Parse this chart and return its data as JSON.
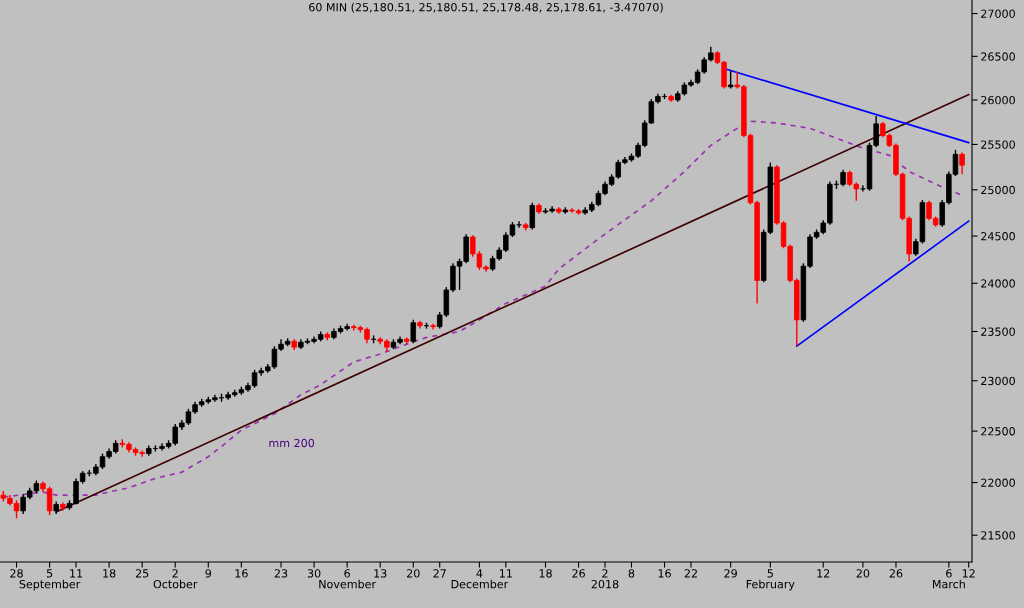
{
  "chart_data": {
    "type": "candlestick",
    "title": "60 MIN (25,180.51, 25,180.51, 25,178.48, 25,178.61, -3.47070)",
    "log": true,
    "ylim": [
      21250,
      27160
    ],
    "yticks": [
      21500,
      22000,
      22500,
      23000,
      23500,
      24000,
      24500,
      25000,
      25500,
      26000,
      26500,
      27000
    ],
    "categories": [
      null,
      null,
      "28",
      null,
      null,
      null,
      null,
      "5\nSeptember",
      null,
      null,
      null,
      "11",
      null,
      null,
      null,
      null,
      "18",
      null,
      null,
      null,
      null,
      "25",
      null,
      null,
      null,
      null,
      "2\nOctober",
      null,
      null,
      null,
      null,
      "9",
      null,
      null,
      null,
      null,
      "16",
      null,
      null,
      null,
      null,
      null,
      "23",
      null,
      null,
      null,
      null,
      "30",
      null,
      null,
      null,
      null,
      "6\nNovember",
      null,
      null,
      null,
      null,
      "13",
      null,
      null,
      null,
      null,
      "20",
      null,
      null,
      null,
      "27",
      null,
      null,
      null,
      null,
      null,
      "4\nDecember",
      null,
      null,
      null,
      "11",
      null,
      null,
      null,
      null,
      null,
      "18",
      null,
      null,
      null,
      null,
      "26",
      null,
      null,
      null,
      "2\n2018",
      null,
      null,
      null,
      "8",
      null,
      null,
      null,
      null,
      "16",
      null,
      null,
      null,
      "22",
      null,
      null,
      null,
      null,
      null,
      "29",
      null,
      null,
      null,
      null,
      null,
      "5\nFebruary",
      null,
      null,
      null,
      null,
      null,
      null,
      null,
      "12",
      null,
      null,
      null,
      null,
      null,
      "20",
      null,
      null,
      null,
      null,
      "26",
      null,
      null,
      null,
      null,
      null,
      null,
      null,
      "6\nMarch",
      null,
      null,
      "12"
    ],
    "grid": false,
    "annotations": [
      "mm 200"
    ],
    "series": [
      {
        "ohlc": [
          [
            21880,
            21920,
            21820,
            21850
          ],
          [
            21850,
            21880,
            21780,
            21800
          ],
          [
            21800,
            21830,
            21660,
            21730
          ],
          [
            21730,
            21890,
            21700,
            21860
          ],
          [
            21860,
            21950,
            21840,
            21920
          ],
          [
            21920,
            22020,
            21900,
            21990
          ],
          [
            21990,
            22010,
            21910,
            21940
          ],
          [
            21940,
            21960,
            21690,
            21730
          ],
          [
            21730,
            21820,
            21700,
            21790
          ],
          [
            21790,
            21810,
            21730,
            21760
          ],
          [
            21760,
            21830,
            21740,
            21800
          ],
          [
            21800,
            22040,
            21790,
            22010
          ],
          [
            22010,
            22110,
            21990,
            22090
          ],
          [
            22090,
            22120,
            22060,
            22090
          ],
          [
            22090,
            22180,
            22070,
            22150
          ],
          [
            22150,
            22280,
            22130,
            22250
          ],
          [
            22250,
            22330,
            22230,
            22300
          ],
          [
            22300,
            22410,
            22280,
            22380
          ],
          [
            22380,
            22420,
            22340,
            22370
          ],
          [
            22370,
            22390,
            22290,
            22320
          ],
          [
            22320,
            22340,
            22260,
            22290
          ],
          [
            22290,
            22310,
            22250,
            22280
          ],
          [
            22280,
            22360,
            22260,
            22330
          ],
          [
            22330,
            22360,
            22300,
            22330
          ],
          [
            22330,
            22380,
            22310,
            22350
          ],
          [
            22350,
            22410,
            22330,
            22380
          ],
          [
            22380,
            22570,
            22360,
            22540
          ],
          [
            22540,
            22610,
            22510,
            22580
          ],
          [
            22580,
            22720,
            22560,
            22690
          ],
          [
            22690,
            22790,
            22670,
            22760
          ],
          [
            22760,
            22820,
            22740,
            22790
          ],
          [
            22790,
            22840,
            22770,
            22810
          ],
          [
            22810,
            22860,
            22790,
            22830
          ],
          [
            22830,
            22870,
            22790,
            22830
          ],
          [
            22830,
            22890,
            22810,
            22860
          ],
          [
            22860,
            22910,
            22840,
            22880
          ],
          [
            22880,
            22940,
            22860,
            22910
          ],
          [
            22910,
            22980,
            22890,
            22950
          ],
          [
            22950,
            23110,
            22930,
            23080
          ],
          [
            23080,
            23130,
            23050,
            23100
          ],
          [
            23100,
            23170,
            23080,
            23140
          ],
          [
            23140,
            23350,
            23120,
            23320
          ],
          [
            23320,
            23420,
            23300,
            23370
          ],
          [
            23370,
            23430,
            23350,
            23400
          ],
          [
            23400,
            23420,
            23310,
            23340
          ],
          [
            23340,
            23420,
            23320,
            23390
          ],
          [
            23390,
            23430,
            23370,
            23400
          ],
          [
            23400,
            23450,
            23380,
            23420
          ],
          [
            23420,
            23500,
            23400,
            23470
          ],
          [
            23470,
            23490,
            23410,
            23440
          ],
          [
            23440,
            23530,
            23420,
            23500
          ],
          [
            23500,
            23560,
            23480,
            23530
          ],
          [
            23530,
            23580,
            23510,
            23550
          ],
          [
            23550,
            23570,
            23510,
            23540
          ],
          [
            23540,
            23560,
            23490,
            23520
          ],
          [
            23520,
            23540,
            23380,
            23420
          ],
          [
            23420,
            23460,
            23380,
            23420
          ],
          [
            23420,
            23440,
            23370,
            23400
          ],
          [
            23400,
            23420,
            23290,
            23340
          ],
          [
            23340,
            23420,
            23320,
            23390
          ],
          [
            23390,
            23450,
            23370,
            23420
          ],
          [
            23420,
            23440,
            23370,
            23400
          ],
          [
            23400,
            23620,
            23380,
            23590
          ],
          [
            23590,
            23610,
            23530,
            23560
          ],
          [
            23560,
            23590,
            23530,
            23560
          ],
          [
            23560,
            23580,
            23520,
            23550
          ],
          [
            23550,
            23700,
            23530,
            23670
          ],
          [
            23670,
            23960,
            23650,
            23930
          ],
          [
            23930,
            24210,
            23910,
            24180
          ],
          [
            24180,
            24260,
            23930,
            24230
          ],
          [
            24230,
            24520,
            24210,
            24490
          ],
          [
            24490,
            24510,
            24280,
            24310
          ],
          [
            24310,
            24340,
            24140,
            24170
          ],
          [
            24170,
            24190,
            24120,
            24150
          ],
          [
            24150,
            24290,
            24130,
            24260
          ],
          [
            24260,
            24380,
            24240,
            24350
          ],
          [
            24350,
            24540,
            24330,
            24510
          ],
          [
            24510,
            24650,
            24490,
            24620
          ],
          [
            24620,
            24660,
            24590,
            24620
          ],
          [
            24620,
            24640,
            24560,
            24590
          ],
          [
            24590,
            24860,
            24570,
            24830
          ],
          [
            24830,
            24850,
            24740,
            24760
          ],
          [
            24760,
            24800,
            24740,
            24770
          ],
          [
            24770,
            24820,
            24750,
            24790
          ],
          [
            24790,
            24810,
            24740,
            24760
          ],
          [
            24760,
            24810,
            24740,
            24780
          ],
          [
            24780,
            24800,
            24750,
            24770
          ],
          [
            24770,
            24790,
            24730,
            24750
          ],
          [
            24750,
            24810,
            24730,
            24780
          ],
          [
            24780,
            24870,
            24760,
            24840
          ],
          [
            24840,
            24990,
            24820,
            24960
          ],
          [
            24960,
            25090,
            24940,
            25060
          ],
          [
            25060,
            25170,
            25040,
            25140
          ],
          [
            25140,
            25330,
            25120,
            25300
          ],
          [
            25300,
            25360,
            25280,
            25330
          ],
          [
            25330,
            25400,
            25310,
            25370
          ],
          [
            25370,
            25520,
            25350,
            25490
          ],
          [
            25490,
            25770,
            25470,
            25740
          ],
          [
            25740,
            26010,
            25730,
            25980
          ],
          [
            25980,
            26070,
            25960,
            26040
          ],
          [
            26040,
            26070,
            26010,
            26040
          ],
          [
            26040,
            26060,
            25980,
            26000
          ],
          [
            26000,
            26100,
            25980,
            26070
          ],
          [
            26070,
            26200,
            26050,
            26170
          ],
          [
            26170,
            26230,
            26150,
            26200
          ],
          [
            26200,
            26350,
            26180,
            26320
          ],
          [
            26320,
            26490,
            26300,
            26460
          ],
          [
            26460,
            26610,
            26440,
            26540
          ],
          [
            26540,
            26560,
            26410,
            26430
          ],
          [
            26430,
            26450,
            26130,
            26150
          ],
          [
            26150,
            26330,
            26130,
            26170
          ],
          [
            26170,
            26320,
            26130,
            26150
          ],
          [
            26150,
            26170,
            25580,
            25600
          ],
          [
            25600,
            25620,
            24840,
            24860
          ],
          [
            24860,
            24880,
            23790,
            24030
          ],
          [
            24030,
            24570,
            24010,
            24540
          ],
          [
            24540,
            25300,
            24520,
            25250
          ],
          [
            25250,
            25270,
            24620,
            24640
          ],
          [
            24640,
            24660,
            24370,
            24390
          ],
          [
            24390,
            24410,
            24010,
            24030
          ],
          [
            24030,
            24050,
            23350,
            23620
          ],
          [
            23620,
            24210,
            23600,
            24180
          ],
          [
            24180,
            24520,
            24160,
            24490
          ],
          [
            24490,
            24570,
            24470,
            24540
          ],
          [
            24540,
            24670,
            24520,
            24640
          ],
          [
            24640,
            25090,
            24620,
            25060
          ],
          [
            25060,
            25100,
            25010,
            25060
          ],
          [
            25060,
            25220,
            25040,
            25190
          ],
          [
            25190,
            25210,
            25040,
            25060
          ],
          [
            25060,
            25080,
            24880,
            25010
          ],
          [
            25010,
            25050,
            24980,
            25010
          ],
          [
            25010,
            25520,
            24990,
            25490
          ],
          [
            25490,
            25820,
            25470,
            25730
          ],
          [
            25730,
            25750,
            25580,
            25600
          ],
          [
            25600,
            25620,
            25470,
            25490
          ],
          [
            25490,
            25510,
            25150,
            25170
          ],
          [
            25170,
            25190,
            24670,
            24690
          ],
          [
            24690,
            24710,
            24230,
            24310
          ],
          [
            24310,
            24470,
            24290,
            24440
          ],
          [
            24440,
            24890,
            24420,
            24860
          ],
          [
            24860,
            24880,
            24670,
            24690
          ],
          [
            24690,
            24710,
            24600,
            24620
          ],
          [
            24620,
            24890,
            24600,
            24860
          ],
          [
            24860,
            25200,
            24840,
            25170
          ],
          [
            25170,
            25440,
            25150,
            25390
          ],
          [
            25390,
            25410,
            25170,
            25270
          ],
          null
        ],
        "colors": [
          "#ff0000",
          "#ff0000",
          "#ff0000",
          "#000000",
          "#000000",
          "#000000",
          "#ff0000",
          "#ff0000",
          "#000000",
          "#ff0000",
          "#000000",
          "#000000",
          "#000000",
          "#000000",
          "#000000",
          "#000000",
          "#000000",
          "#000000",
          "#ff0000",
          "#ff0000",
          "#ff0000",
          "#ff0000",
          "#000000",
          "#000000",
          "#000000",
          "#000000",
          "#000000",
          "#000000",
          "#000000",
          "#000000",
          "#000000",
          "#000000",
          "#000000",
          "#000000",
          "#000000",
          "#000000",
          "#000000",
          "#000000",
          "#000000",
          "#000000",
          "#000000",
          "#000000",
          "#000000",
          "#000000",
          "#ff0000",
          "#000000",
          "#000000",
          "#000000",
          "#000000",
          "#ff0000",
          "#000000",
          "#000000",
          "#000000",
          "#ff0000",
          "#ff0000",
          "#ff0000",
          "#000000",
          "#ff0000",
          "#ff0000",
          "#000000",
          "#000000",
          "#ff0000",
          "#000000",
          "#ff0000",
          "#000000",
          "#ff0000",
          "#000000",
          "#000000",
          "#000000",
          "#000000",
          "#000000",
          "#ff0000",
          "#ff0000",
          "#ff0000",
          "#000000",
          "#000000",
          "#000000",
          "#000000",
          "#000000",
          "#ff0000",
          "#000000",
          "#ff0000",
          "#000000",
          "#000000",
          "#ff0000",
          "#000000",
          "#ff0000",
          "#ff0000",
          "#000000",
          "#000000",
          "#000000",
          "#000000",
          "#000000",
          "#000000",
          "#000000",
          "#000000",
          "#000000",
          "#000000",
          "#000000",
          "#000000",
          "#000000",
          "#ff0000",
          "#000000",
          "#000000",
          "#000000",
          "#000000",
          "#000000",
          "#000000",
          "#ff0000",
          "#ff0000",
          "#000000",
          "#ff0000",
          "#ff0000",
          "#ff0000",
          "#ff0000",
          "#000000",
          "#000000",
          "#ff0000",
          "#ff0000",
          "#ff0000",
          "#ff0000",
          "#000000",
          "#000000",
          "#000000",
          "#000000",
          "#000000",
          "#000000",
          "#000000",
          "#ff0000",
          "#ff0000",
          "#000000",
          "#000000",
          "#000000",
          "#ff0000",
          "#ff0000",
          "#ff0000",
          "#ff0000",
          "#ff0000",
          "#000000",
          "#000000",
          "#ff0000",
          "#ff0000",
          "#000000",
          "#000000",
          "#000000",
          "#ff0000",
          null
        ]
      },
      {
        "type": "line",
        "color": "#9b30b0",
        "line_style": "dashed",
        "values": [
          21860,
          null,
          null,
          null,
          null,
          null,
          21910,
          null,
          21880,
          null,
          null,
          null,
          null,
          null,
          21880,
          null,
          21910,
          null,
          null,
          21950,
          null,
          null,
          null,
          22040,
          null,
          null,
          null,
          22100,
          null,
          null,
          null,
          22250,
          null,
          22350,
          null,
          null,
          22510,
          null,
          null,
          null,
          null,
          22670,
          null,
          null,
          null,
          22860,
          null,
          null,
          22960,
          null,
          null,
          null,
          null,
          23190,
          null,
          null,
          null,
          23270,
          null,
          null,
          null,
          23370,
          null,
          null,
          23440,
          null,
          null,
          null,
          null,
          23500,
          null,
          null,
          23620,
          null,
          null,
          null,
          23790,
          null,
          null,
          null,
          null,
          null,
          23970,
          null,
          24150,
          null,
          null,
          null,
          null,
          null,
          24470,
          null,
          null,
          null,
          null,
          null,
          null,
          null,
          24880,
          null,
          null,
          null,
          null,
          25200,
          null,
          null,
          null,
          25490,
          null,
          null,
          null,
          25680,
          null,
          25760,
          null,
          null,
          null,
          25740,
          null,
          null,
          null,
          null,
          25680,
          null,
          null,
          null,
          25570,
          null,
          null,
          null,
          25460,
          null,
          null,
          null,
          25380,
          null,
          null,
          25200,
          null,
          null,
          null,
          null,
          25030,
          null,
          null,
          24940,
          null
        ]
      },
      {
        "type": "line",
        "color": "#400000",
        "line_style": "solid",
        "values": [
          null,
          null,
          null,
          null,
          null,
          null,
          null,
          null,
          21720,
          null,
          null,
          null,
          null,
          null,
          null,
          null,
          null,
          null,
          null,
          null,
          null,
          null,
          null,
          null,
          null,
          null,
          null,
          null,
          null,
          null,
          null,
          null,
          null,
          null,
          null,
          null,
          null,
          null,
          null,
          null,
          null,
          null,
          null,
          null,
          null,
          null,
          null,
          null,
          null,
          null,
          null,
          null,
          null,
          null,
          null,
          null,
          null,
          null,
          null,
          null,
          null,
          null,
          null,
          null,
          null,
          null,
          null,
          null,
          null,
          null,
          null,
          null,
          null,
          null,
          null,
          null,
          null,
          null,
          null,
          null,
          null,
          null,
          null,
          null,
          null,
          null,
          null,
          null,
          null,
          null,
          null,
          null,
          null,
          null,
          null,
          null,
          null,
          null,
          null,
          null,
          null,
          null,
          null,
          null,
          null,
          null,
          null,
          null,
          null,
          null,
          null,
          null,
          null,
          null,
          null,
          null,
          null,
          null,
          null,
          null,
          null,
          null,
          null,
          null,
          null,
          null,
          null,
          null,
          null,
          null,
          null,
          null,
          null,
          null,
          null,
          null,
          null,
          null,
          null,
          null,
          null,
          null,
          null,
          null,
          null,
          null,
          26060
        ]
      },
      {
        "type": "line",
        "color": "#0000ff",
        "line_style": "solid",
        "values": [
          null,
          null,
          null,
          null,
          null,
          null,
          null,
          null,
          null,
          null,
          null,
          null,
          null,
          null,
          null,
          null,
          null,
          null,
          null,
          null,
          null,
          null,
          null,
          null,
          null,
          null,
          null,
          null,
          null,
          null,
          null,
          null,
          null,
          null,
          null,
          null,
          null,
          null,
          null,
          null,
          null,
          null,
          null,
          null,
          null,
          null,
          null,
          null,
          null,
          null,
          null,
          null,
          null,
          null,
          null,
          null,
          null,
          null,
          null,
          null,
          null,
          null,
          null,
          null,
          null,
          null,
          null,
          null,
          null,
          null,
          null,
          null,
          null,
          null,
          null,
          null,
          null,
          null,
          null,
          null,
          null,
          null,
          null,
          null,
          null,
          null,
          null,
          null,
          null,
          null,
          null,
          null,
          null,
          null,
          null,
          null,
          null,
          null,
          null,
          null,
          null,
          null,
          null,
          null,
          null,
          null,
          null,
          null,
          null,
          26360,
          null,
          null,
          null,
          null,
          null,
          null,
          null,
          null,
          null,
          null,
          null,
          null,
          null,
          null,
          null,
          null,
          null,
          null,
          null,
          null,
          null,
          null,
          null,
          null,
          null,
          null,
          null,
          null,
          null,
          null,
          null,
          null,
          null,
          null,
          null,
          null,
          25520
        ]
      },
      {
        "type": "line",
        "color": "#0000ff",
        "line_style": "solid",
        "values": [
          null,
          null,
          null,
          null,
          null,
          null,
          null,
          null,
          null,
          null,
          null,
          null,
          null,
          null,
          null,
          null,
          null,
          null,
          null,
          null,
          null,
          null,
          null,
          null,
          null,
          null,
          null,
          null,
          null,
          null,
          null,
          null,
          null,
          null,
          null,
          null,
          null,
          null,
          null,
          null,
          null,
          null,
          null,
          null,
          null,
          null,
          null,
          null,
          null,
          null,
          null,
          null,
          null,
          null,
          null,
          null,
          null,
          null,
          null,
          null,
          null,
          null,
          null,
          null,
          null,
          null,
          null,
          null,
          null,
          null,
          null,
          null,
          null,
          null,
          null,
          null,
          null,
          null,
          null,
          null,
          null,
          null,
          null,
          null,
          null,
          null,
          null,
          null,
          null,
          null,
          null,
          null,
          null,
          null,
          null,
          null,
          null,
          null,
          null,
          null,
          null,
          null,
          null,
          null,
          null,
          null,
          null,
          null,
          null,
          null,
          null,
          null,
          null,
          null,
          null,
          null,
          null,
          null,
          null,
          null,
          23350,
          null,
          null,
          null,
          null,
          null,
          null,
          null,
          null,
          null,
          null,
          null,
          null,
          null,
          null,
          null,
          null,
          null,
          null,
          null,
          null,
          null,
          null,
          null,
          null,
          null,
          24660
        ]
      }
    ]
  }
}
